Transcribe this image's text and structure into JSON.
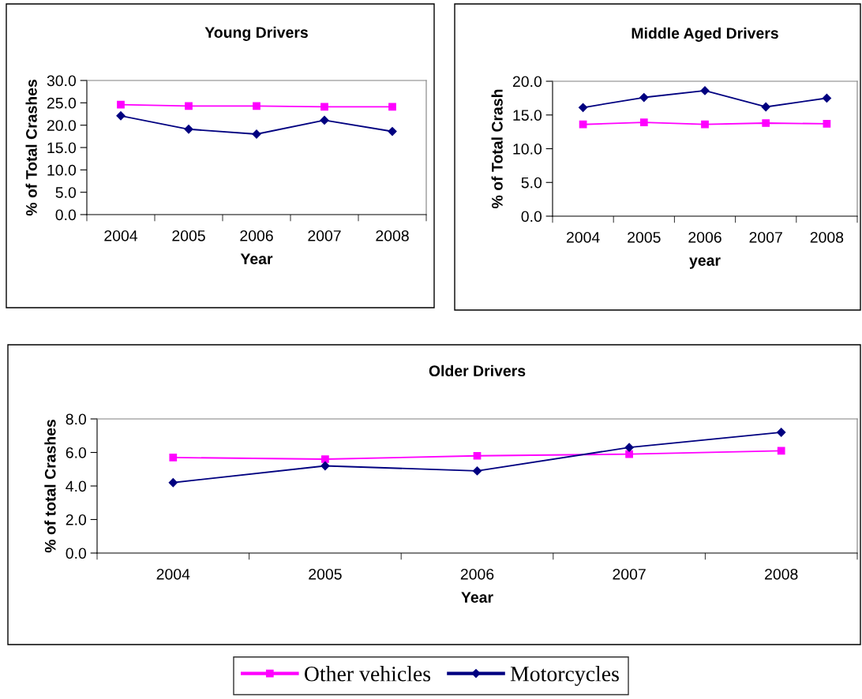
{
  "chart_data": [
    {
      "type": "line",
      "title": "Young Drivers",
      "xlabel": "Year",
      "ylabel": "% of Total Crashes",
      "categories": [
        "2004",
        "2005",
        "2006",
        "2007",
        "2008"
      ],
      "ylim": [
        0,
        30
      ],
      "yticks": [
        {
          "value": 0,
          "label": "0.0"
        },
        {
          "value": 5,
          "label": "5.0"
        },
        {
          "value": 10,
          "label": "10.0"
        },
        {
          "value": 15,
          "label": "15.0"
        },
        {
          "value": 20,
          "label": "20.0"
        },
        {
          "value": 25,
          "label": "25.0"
        },
        {
          "value": 30,
          "label": "30.0"
        }
      ],
      "grid": false,
      "legend": "bottom",
      "series": [
        {
          "name": "Other vehicles",
          "color": "#ff00ff",
          "marker": "square",
          "values": [
            24.6,
            24.3,
            24.3,
            24.1,
            24.1
          ]
        },
        {
          "name": "Motorcycles",
          "color": "#000080",
          "marker": "diamond",
          "values": [
            22.1,
            19.1,
            18.0,
            21.1,
            18.6
          ]
        }
      ]
    },
    {
      "type": "line",
      "title": "Middle Aged Drivers",
      "xlabel": "year",
      "ylabel": "% of Total Crash",
      "categories": [
        "2004",
        "2005",
        "2006",
        "2007",
        "2008"
      ],
      "ylim": [
        0,
        20
      ],
      "yticks": [
        {
          "value": 0,
          "label": "0.0"
        },
        {
          "value": 5,
          "label": "5.0"
        },
        {
          "value": 10,
          "label": "10.0"
        },
        {
          "value": 15,
          "label": "15.0"
        },
        {
          "value": 20,
          "label": "20.0"
        }
      ],
      "grid": false,
      "series": [
        {
          "color": "#ff00ff",
          "marker": "square",
          "values": [
            13.6,
            13.9,
            13.6,
            13.8,
            13.7
          ]
        },
        {
          "color": "#000080",
          "marker": "diamond",
          "values": [
            16.1,
            17.6,
            18.6,
            16.2,
            17.5
          ]
        }
      ]
    },
    {
      "type": "line",
      "title": "Older Drivers",
      "xlabel": "Year",
      "ylabel": "% of total Crashes",
      "categories": [
        "2004",
        "2005",
        "2006",
        "2007",
        "2008"
      ],
      "ylim": [
        0,
        8
      ],
      "yticks": [
        {
          "value": 0,
          "label": "0.0"
        },
        {
          "value": 2,
          "label": "2.0"
        },
        {
          "value": 4,
          "label": "4.0"
        },
        {
          "value": 6,
          "label": "6.0"
        },
        {
          "value": 8,
          "label": "8.0"
        }
      ],
      "grid": false,
      "series": [
        {
          "color": "#ff00ff",
          "marker": "square",
          "values": [
            5.7,
            5.6,
            5.8,
            5.9,
            6.1
          ]
        },
        {
          "color": "#000080",
          "marker": "diamond",
          "values": [
            4.2,
            5.2,
            4.9,
            6.3,
            7.2
          ]
        }
      ]
    }
  ]
}
